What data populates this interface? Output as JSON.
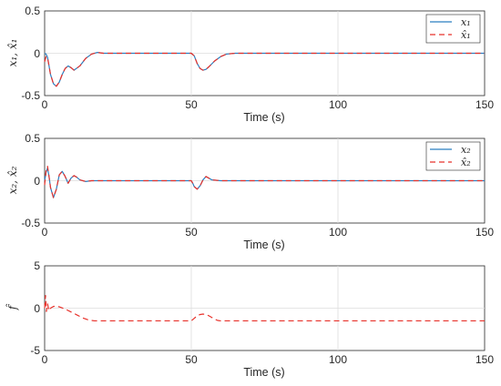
{
  "colors": {
    "estimate": "#e8312a",
    "actual": "#2b7fc1",
    "grid": "#dcdcdc",
    "axis": "#262626"
  },
  "chart_data": [
    {
      "type": "line",
      "xlabel": "Time (s)",
      "ylabel": "x₁, x̂₁",
      "xlim": [
        0,
        150
      ],
      "ylim": [
        -0.5,
        0.5
      ],
      "xticks": [
        "0",
        "50",
        "100",
        "150"
      ],
      "yticks": [
        "0.5",
        "0",
        "-0.5"
      ],
      "grid": true,
      "legend_position": "top-right",
      "series": [
        {
          "name": "x₁",
          "style": "solid",
          "color": "#2b7fc1",
          "x": [
            0,
            0.5,
            1,
            1.5,
            2,
            3,
            4,
            5,
            6,
            7,
            8,
            9,
            10,
            12,
            14,
            16,
            18,
            20,
            30,
            40,
            50,
            51,
            52,
            53,
            54,
            55,
            56,
            58,
            60,
            62,
            65,
            70,
            150
          ],
          "y": [
            0,
            -0.01,
            -0.05,
            -0.15,
            -0.25,
            -0.36,
            -0.39,
            -0.34,
            -0.25,
            -0.18,
            -0.15,
            -0.17,
            -0.2,
            -0.15,
            -0.06,
            -0.01,
            0.01,
            0,
            0,
            0,
            0,
            -0.03,
            -0.12,
            -0.18,
            -0.2,
            -0.19,
            -0.16,
            -0.09,
            -0.04,
            -0.01,
            0,
            0,
            0
          ]
        },
        {
          "name": "x̂₁",
          "style": "dashed",
          "color": "#e8312a",
          "x": [
            0,
            0.5,
            1,
            1.5,
            2,
            3,
            4,
            5,
            6,
            7,
            8,
            9,
            10,
            12,
            14,
            16,
            18,
            20,
            30,
            40,
            50,
            51,
            52,
            53,
            54,
            55,
            56,
            58,
            60,
            62,
            65,
            70,
            150
          ],
          "y": [
            -0.1,
            -0.04,
            -0.05,
            -0.15,
            -0.25,
            -0.36,
            -0.39,
            -0.34,
            -0.25,
            -0.18,
            -0.15,
            -0.17,
            -0.2,
            -0.15,
            -0.06,
            -0.01,
            0.01,
            0,
            0,
            0,
            0,
            -0.03,
            -0.12,
            -0.18,
            -0.2,
            -0.19,
            -0.16,
            -0.09,
            -0.04,
            -0.01,
            0,
            0,
            0
          ]
        }
      ]
    },
    {
      "type": "line",
      "xlabel": "Time (s)",
      "ylabel": "x₂, x̂₂",
      "xlim": [
        0,
        150
      ],
      "ylim": [
        -0.5,
        0.5
      ],
      "xticks": [
        "0",
        "50",
        "100",
        "150"
      ],
      "yticks": [
        "0.5",
        "0",
        "-0.5"
      ],
      "grid": true,
      "legend_position": "top-right",
      "series": [
        {
          "name": "x₂",
          "style": "solid",
          "color": "#2b7fc1",
          "x": [
            0,
            0.5,
            1,
            1.5,
            2,
            3,
            4,
            5,
            6,
            7,
            8,
            9,
            10,
            11,
            12,
            14,
            16,
            20,
            50,
            50.5,
            51,
            52,
            53,
            54,
            55,
            57,
            60,
            150
          ],
          "y": [
            0,
            0.1,
            0.15,
            0.05,
            -0.08,
            -0.2,
            -0.1,
            0.07,
            0.11,
            0.05,
            -0.03,
            0.03,
            0.06,
            0.04,
            0.01,
            -0.01,
            0,
            0,
            0,
            -0.03,
            -0.07,
            -0.1,
            -0.06,
            0.01,
            0.05,
            0.01,
            0,
            0
          ]
        },
        {
          "name": "x̂₂",
          "style": "dashed",
          "color": "#e8312a",
          "x": [
            0,
            0.5,
            1,
            1.5,
            2,
            3,
            4,
            5,
            6,
            7,
            8,
            9,
            10,
            11,
            12,
            14,
            16,
            20,
            50,
            50.5,
            51,
            52,
            53,
            54,
            55,
            57,
            60,
            150
          ],
          "y": [
            -0.05,
            0.12,
            0.17,
            0.05,
            -0.08,
            -0.2,
            -0.1,
            0.07,
            0.11,
            0.05,
            -0.03,
            0.03,
            0.06,
            0.04,
            0.01,
            -0.01,
            0,
            0,
            0,
            -0.03,
            -0.07,
            -0.1,
            -0.06,
            0.01,
            0.05,
            0.01,
            0,
            0
          ]
        }
      ]
    },
    {
      "type": "line",
      "xlabel": "Time (s)",
      "ylabel": "f̂",
      "xlim": [
        0,
        150
      ],
      "ylim": [
        -5,
        5
      ],
      "xticks": [
        "0",
        "50",
        "100",
        "150"
      ],
      "yticks": [
        "5",
        "0",
        "-5"
      ],
      "grid": true,
      "series": [
        {
          "style": "dashed",
          "color": "#e8312a",
          "x": [
            0,
            0.3,
            0.6,
            1,
            1.5,
            2,
            3,
            4,
            5,
            7,
            9,
            11,
            13,
            15,
            17,
            20,
            30,
            40,
            50,
            51,
            52,
            53,
            54,
            55,
            56,
            57,
            58,
            59,
            60,
            62,
            70,
            150
          ],
          "y": [
            0,
            1.5,
            -0.4,
            0.5,
            -0.3,
            0,
            0.2,
            0.25,
            0.15,
            -0.1,
            -0.45,
            -0.8,
            -1.15,
            -1.4,
            -1.5,
            -1.5,
            -1.5,
            -1.5,
            -1.5,
            -1.2,
            -0.9,
            -0.75,
            -0.7,
            -0.75,
            -0.9,
            -1.1,
            -1.3,
            -1.45,
            -1.5,
            -1.5,
            -1.5,
            -1.5
          ]
        }
      ]
    }
  ]
}
